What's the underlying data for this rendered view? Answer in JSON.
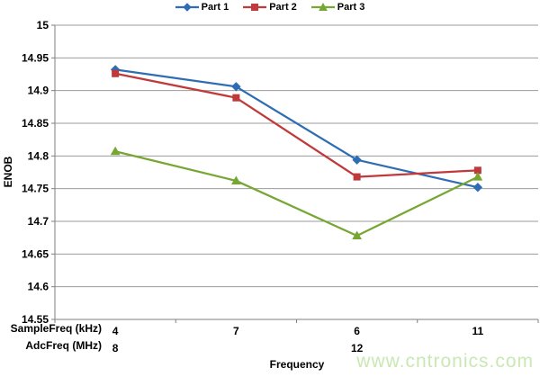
{
  "watermark": {
    "text": "www.cntronics.com",
    "color": "#c9e8b4"
  },
  "chart_data": {
    "type": "line",
    "title": "",
    "xlabel": "Frequency",
    "ylabel": "ENOB",
    "legend_position": "top",
    "grid": true,
    "x_rows": [
      {
        "label": "SampleFreq (kHz)",
        "values": [
          "4",
          "7",
          "6",
          "11"
        ]
      },
      {
        "label": "AdcFreq (MHz)",
        "values": [
          "8",
          "",
          "12",
          ""
        ]
      }
    ],
    "y_axis": {
      "min": 14.55,
      "max": 15,
      "step": 0.05,
      "ticks": [
        "15",
        "14.95",
        "14.9",
        "14.85",
        "14.8",
        "14.75",
        "14.7",
        "14.65",
        "14.6",
        "14.55"
      ]
    },
    "series": [
      {
        "name": "Part 1",
        "color": "#2e6db4",
        "marker": "diamond",
        "values": [
          14.932,
          14.906,
          14.794,
          14.752
        ]
      },
      {
        "name": "Part 2",
        "color": "#c0393b",
        "marker": "square",
        "values": [
          14.926,
          14.889,
          14.768,
          14.778
        ]
      },
      {
        "name": "Part 3",
        "color": "#77a733",
        "marker": "triangle",
        "values": [
          14.807,
          14.762,
          14.678,
          14.768
        ]
      }
    ]
  }
}
